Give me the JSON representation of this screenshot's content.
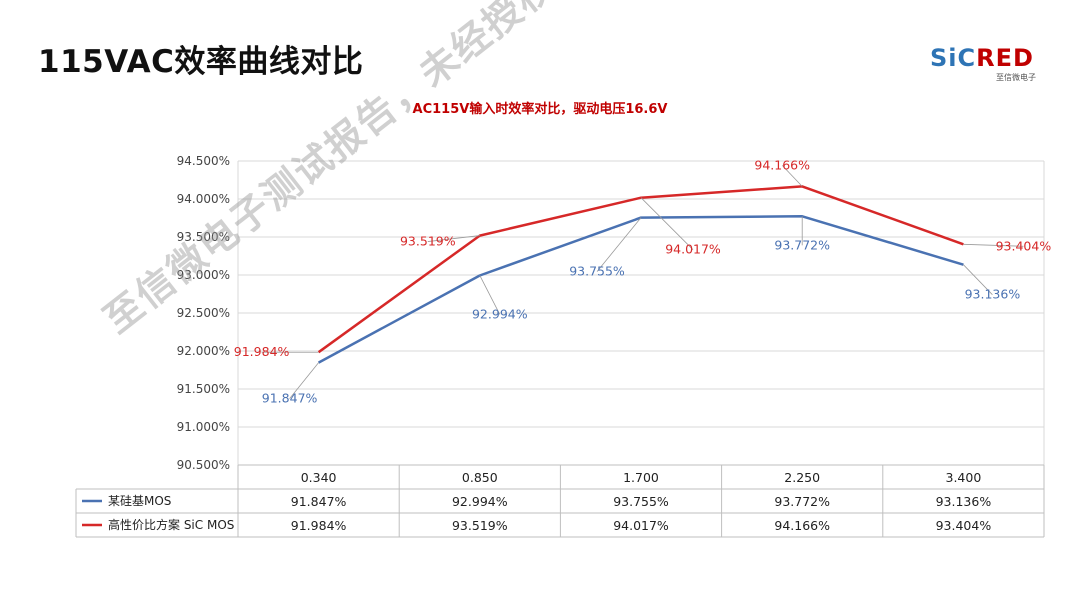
{
  "page": {
    "title": "115VAC效率曲线对比"
  },
  "logo": {
    "text_part1": "SiC",
    "text_part2": "RED",
    "subtitle": "至信微电子",
    "color_part1": "#2e74b5",
    "color_part2": "#c00000"
  },
  "watermark": {
    "text": "至信微电子测试报告，未经授权禁止转载或使用"
  },
  "chart_data": {
    "type": "line",
    "title": "AC115V输入时效率对比，驱动电压16.6V",
    "x": [
      "0.340",
      "0.850",
      "1.700",
      "2.250",
      "3.400"
    ],
    "ylim": [
      90.5,
      94.5
    ],
    "yticks": [
      "90.500%",
      "91.000%",
      "91.500%",
      "92.000%",
      "92.500%",
      "93.000%",
      "93.500%",
      "94.000%",
      "94.500%"
    ],
    "grid": true,
    "legend": "data-table",
    "series": [
      {
        "name": "某硅基MOS",
        "color": "#4a72b2",
        "values": [
          91.847,
          92.994,
          93.755,
          93.772,
          93.136
        ],
        "labels": [
          "91.847%",
          "92.994%",
          "93.755%",
          "93.772%",
          "93.136%"
        ]
      },
      {
        "name": "高性价比方案 SiC MOS",
        "color": "#d62828",
        "values": [
          91.984,
          93.519,
          94.017,
          94.166,
          93.404
        ],
        "labels": [
          "91.984%",
          "93.519%",
          "94.017%",
          "94.166%",
          "93.404%"
        ]
      }
    ]
  }
}
